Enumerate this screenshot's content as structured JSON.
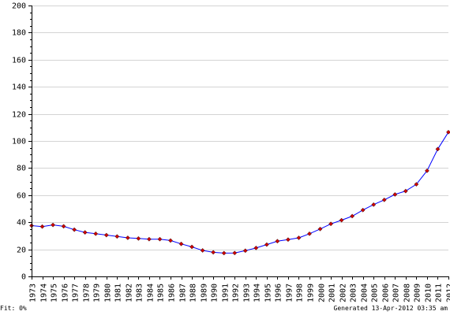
{
  "chart_data": {
    "type": "line",
    "x": [
      "1973",
      "1974",
      "1975",
      "1976",
      "1977",
      "1978",
      "1979",
      "1980",
      "1981",
      "1982",
      "1983",
      "1984",
      "1985",
      "1986",
      "1987",
      "1988",
      "1989",
      "1990",
      "1991",
      "1992",
      "1993",
      "1994",
      "1995",
      "1996",
      "1997",
      "1998",
      "1999",
      "2000",
      "2001",
      "2002",
      "2003",
      "2004",
      "2005",
      "2006",
      "2007",
      "2008",
      "2009",
      "2010",
      "2011",
      "2012"
    ],
    "series": [
      {
        "values": [
          37.5,
          36.8,
          38.0,
          37.0,
          34.5,
          32.5,
          31.5,
          30.5,
          29.5,
          28.5,
          28.0,
          27.5,
          27.5,
          26.5,
          24.0,
          21.8,
          19.2,
          17.8,
          17.2,
          17.3,
          19.0,
          21.0,
          23.5,
          26.0,
          27.2,
          28.5,
          31.5,
          35.0,
          38.8,
          41.5,
          44.5,
          49.0,
          53.0,
          56.5,
          60.5,
          63.0,
          68.0,
          78.0,
          94.0,
          106.5
        ],
        "line_color": "#0000ff",
        "marker_color": "#cc0000"
      }
    ],
    "ylim": [
      0,
      200
    ],
    "yticks": [
      0,
      20,
      40,
      60,
      80,
      100,
      120,
      140,
      160,
      180,
      200
    ],
    "grid": true,
    "grid_color": "#d4d4d4",
    "title": "",
    "xlabel": "",
    "ylabel": ""
  },
  "footer": {
    "fit": "Fit: 0%",
    "generated": "Generated 13-Apr-2012 03:35 am"
  }
}
